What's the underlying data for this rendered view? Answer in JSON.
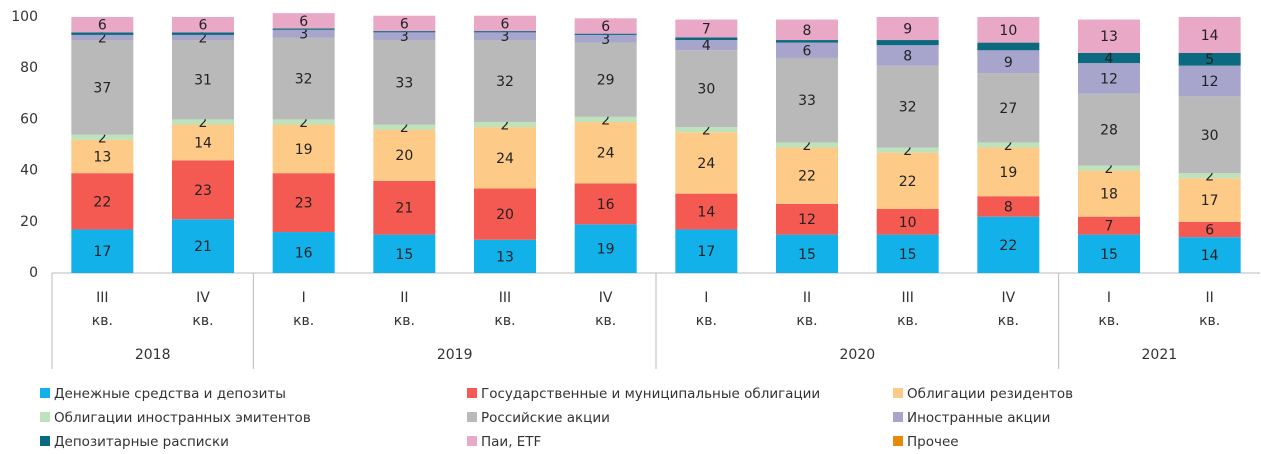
{
  "chart_data": {
    "type": "stacked_bar",
    "categories": [
      "III кв.",
      "IV кв.",
      "I кв.",
      "II кв.",
      "III кв.",
      "IV кв.",
      "I кв.",
      "II кв.",
      "III кв.",
      "IV кв.",
      "I кв.",
      "II кв."
    ],
    "category_groups": [
      "2018",
      "2018",
      "2019",
      "2019",
      "2019",
      "2019",
      "2020",
      "2020",
      "2020",
      "2020",
      "2021",
      "2021"
    ],
    "ylim": [
      0,
      100
    ],
    "yticks": [
      0,
      20,
      40,
      60,
      80,
      100
    ],
    "series": [
      {
        "name": "Денежные средства и депозиты",
        "color": "#12b1ea",
        "values": [
          17,
          21,
          16,
          15,
          13,
          19,
          17,
          15,
          15,
          22,
          15,
          14
        ]
      },
      {
        "name": "Государственные и муниципальные облигации",
        "color": "#f55a52",
        "values": [
          22,
          23,
          23,
          21,
          20,
          16,
          14,
          12,
          10,
          8,
          7,
          6
        ]
      },
      {
        "name": "Облигации резидентов",
        "color": "#fdcb87",
        "values": [
          13,
          14,
          19,
          20,
          24,
          24,
          24,
          22,
          22,
          19,
          18,
          17
        ]
      },
      {
        "name": "Облигации иностранных эмитентов",
        "color": "#bde2bc",
        "values": [
          2,
          2,
          2,
          2,
          2,
          2,
          2,
          2,
          2,
          2,
          2,
          2
        ]
      },
      {
        "name": "Российские акции",
        "color": "#b9b9b9",
        "values": [
          37,
          31,
          32,
          33,
          32,
          29,
          30,
          33,
          32,
          27,
          28,
          30
        ]
      },
      {
        "name": "Иностранные акции",
        "color": "#a8a5cd",
        "values": [
          2,
          2,
          3,
          3,
          3,
          3,
          4,
          6,
          8,
          9,
          12,
          12
        ]
      },
      {
        "name": "Депозитарные расписки",
        "color": "#0b6a80",
        "values": [
          1,
          1,
          0.5,
          0.5,
          0.5,
          0.5,
          1,
          1,
          2,
          3,
          4,
          5
        ],
        "value_labels": [
          null,
          null,
          null,
          null,
          null,
          null,
          null,
          null,
          null,
          null,
          "4",
          "5"
        ]
      },
      {
        "name": "Паи, ETF",
        "color": "#eaa8c7",
        "values": [
          6,
          6,
          6,
          6,
          6,
          6,
          7,
          8,
          9,
          10,
          13,
          14
        ]
      },
      {
        "name": "Прочее",
        "color": "#e8890c",
        "values": [
          0,
          0,
          0,
          0,
          0,
          0,
          0,
          0,
          0,
          0,
          0,
          0
        ],
        "value_labels": [
          null,
          null,
          null,
          null,
          null,
          null,
          null,
          null,
          null,
          null,
          null,
          null
        ]
      }
    ]
  }
}
